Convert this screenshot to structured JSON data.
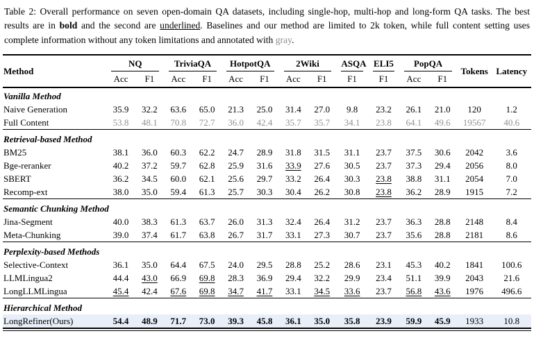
{
  "caption": {
    "parts": [
      {
        "t": "Table 2: Overall performance on seven open-domain QA datasets, including single-hop, multi-hop and long-form QA tasks. The best results are in ",
        "s": ""
      },
      {
        "t": "bold",
        "s": "bold"
      },
      {
        "t": " and the second are ",
        "s": ""
      },
      {
        "t": "underlined",
        "s": "underline"
      },
      {
        "t": ". Baselines and our method are limited to 2k token, while full content setting uses complete information without any token limitations and annotated with ",
        "s": ""
      },
      {
        "t": "gray",
        "s": "gray"
      },
      {
        "t": ".",
        "s": ""
      }
    ]
  },
  "colors": {
    "highlight_row_bg": "#e9eff9",
    "gray_text": "#919191",
    "rule_color": "#000000"
  },
  "table": {
    "method_header": "Method",
    "tokens_header": "Tokens",
    "latency_header": "Latency",
    "groups": [
      {
        "label": "NQ",
        "subs": [
          "Acc",
          "F1"
        ]
      },
      {
        "label": "TriviaQA",
        "subs": [
          "Acc",
          "F1"
        ]
      },
      {
        "label": "HotpotQA",
        "subs": [
          "Acc",
          "F1"
        ]
      },
      {
        "label": "2Wiki",
        "subs": [
          "Acc",
          "F1"
        ]
      },
      {
        "label": "ASQA",
        "subs": [
          "F1"
        ]
      },
      {
        "label": "ELI5",
        "subs": [
          "F1"
        ]
      },
      {
        "label": "PopQA",
        "subs": [
          "Acc",
          "F1"
        ]
      }
    ],
    "sections": [
      {
        "title": "Vanilla Method",
        "rows": [
          {
            "method": "Naive Generation",
            "row_style": "",
            "cells": [
              "35.9",
              "32.2",
              "63.6",
              "65.0",
              "21.3",
              "25.0",
              "31.4",
              "27.0",
              "9.8",
              "23.2",
              "26.1",
              "21.0",
              "120",
              "1.2"
            ],
            "styles": [
              "",
              "",
              "",
              "",
              "",
              "",
              "",
              "",
              "",
              "",
              "",
              "",
              "",
              ""
            ]
          },
          {
            "method": "Full Content",
            "row_style": "gray",
            "cells": [
              "53.8",
              "48.1",
              "70.8",
              "72.7",
              "36.0",
              "42.4",
              "35.7",
              "35.7",
              "34.1",
              "23.8",
              "64.1",
              "49.6",
              "19567",
              "40.6"
            ],
            "styles": [
              "",
              "",
              "",
              "",
              "",
              "",
              "",
              "",
              "",
              "",
              "",
              "",
              "",
              ""
            ]
          }
        ]
      },
      {
        "title": "Retrieval-based Method",
        "rows": [
          {
            "method": "BM25",
            "row_style": "",
            "cells": [
              "38.1",
              "36.0",
              "60.3",
              "62.2",
              "24.7",
              "28.9",
              "31.8",
              "31.5",
              "31.1",
              "23.7",
              "37.5",
              "30.6",
              "2042",
              "3.6"
            ],
            "styles": [
              "",
              "",
              "",
              "",
              "",
              "",
              "",
              "",
              "",
              "",
              "",
              "",
              "",
              ""
            ]
          },
          {
            "method": "Bge-reranker",
            "row_style": "",
            "cells": [
              "40.2",
              "37.2",
              "59.7",
              "62.8",
              "25.9",
              "31.6",
              "33.9",
              "27.6",
              "30.5",
              "23.7",
              "37.3",
              "29.4",
              "2056",
              "8.0"
            ],
            "styles": [
              "",
              "",
              "",
              "",
              "",
              "",
              "u",
              "",
              "",
              "",
              "",
              "",
              "",
              ""
            ]
          },
          {
            "method": "SBERT",
            "row_style": "",
            "cells": [
              "36.2",
              "34.5",
              "60.0",
              "62.1",
              "25.6",
              "29.7",
              "33.2",
              "26.4",
              "30.3",
              "23.8",
              "38.8",
              "31.1",
              "2054",
              "7.0"
            ],
            "styles": [
              "",
              "",
              "",
              "",
              "",
              "",
              "",
              "",
              "",
              "u",
              "",
              "",
              "",
              ""
            ]
          },
          {
            "method": "Recomp-ext",
            "row_style": "",
            "cells": [
              "38.0",
              "35.0",
              "59.4",
              "61.3",
              "25.7",
              "30.3",
              "30.4",
              "26.2",
              "30.8",
              "23.8",
              "36.2",
              "28.9",
              "1915",
              "7.2"
            ],
            "styles": [
              "",
              "",
              "",
              "",
              "",
              "",
              "",
              "",
              "",
              "u",
              "",
              "",
              "",
              ""
            ]
          }
        ]
      },
      {
        "title": "Semantic Chunking Method",
        "rows": [
          {
            "method": "Jina-Segment",
            "row_style": "",
            "cells": [
              "40.0",
              "38.3",
              "61.3",
              "63.7",
              "26.0",
              "31.3",
              "32.4",
              "26.4",
              "31.2",
              "23.7",
              "36.3",
              "28.8",
              "2148",
              "8.4"
            ],
            "styles": [
              "",
              "",
              "",
              "",
              "",
              "",
              "",
              "",
              "",
              "",
              "",
              "",
              "",
              ""
            ]
          },
          {
            "method": "Meta-Chunking",
            "row_style": "",
            "cells": [
              "39.0",
              "37.4",
              "61.7",
              "63.8",
              "26.7",
              "31.7",
              "33.1",
              "27.3",
              "30.7",
              "23.7",
              "35.6",
              "28.8",
              "2181",
              "8.6"
            ],
            "styles": [
              "",
              "",
              "",
              "",
              "",
              "",
              "",
              "",
              "",
              "",
              "",
              "",
              "",
              ""
            ]
          }
        ]
      },
      {
        "title": "Perplexity-based Methods",
        "rows": [
          {
            "method": "Selective-Context",
            "row_style": "",
            "cells": [
              "36.1",
              "35.0",
              "64.4",
              "67.5",
              "24.0",
              "29.5",
              "28.8",
              "25.2",
              "28.6",
              "23.1",
              "45.3",
              "40.2",
              "1841",
              "100.6"
            ],
            "styles": [
              "",
              "",
              "",
              "",
              "",
              "",
              "",
              "",
              "",
              "",
              "",
              "",
              "",
              ""
            ]
          },
          {
            "method": "LLMLingua2",
            "row_style": "",
            "cells": [
              "44.4",
              "43.0",
              "66.9",
              "69.8",
              "28.3",
              "36.9",
              "29.4",
              "32.2",
              "29.9",
              "23.4",
              "51.1",
              "39.9",
              "2043",
              "21.6"
            ],
            "styles": [
              "",
              "u",
              "",
              "u",
              "",
              "",
              "",
              "",
              "",
              "",
              "",
              "",
              "",
              ""
            ]
          },
          {
            "method": "LongLLMLingua",
            "row_style": "",
            "cells": [
              "45.4",
              "42.4",
              "67.6",
              "69.8",
              "34.7",
              "41.7",
              "33.1",
              "34.5",
              "33.6",
              "23.7",
              "56.8",
              "43.6",
              "1976",
              "496.6"
            ],
            "styles": [
              "u",
              "",
              "u",
              "u",
              "u",
              "u",
              "",
              "u",
              "u",
              "",
              "u",
              "u",
              "",
              ""
            ]
          }
        ]
      },
      {
        "title": "Hierarchical Method",
        "rows": [
          {
            "method": "LongRefiner(Ours)",
            "row_style": "highlight",
            "cells": [
              "54.4",
              "48.9",
              "71.7",
              "73.0",
              "39.3",
              "45.8",
              "36.1",
              "35.0",
              "35.8",
              "23.9",
              "59.9",
              "45.9",
              "1933",
              "10.8"
            ],
            "styles": [
              "b",
              "b",
              "b",
              "b",
              "b",
              "b",
              "b",
              "b",
              "b",
              "b",
              "b",
              "b",
              "",
              ""
            ]
          }
        ]
      }
    ]
  }
}
